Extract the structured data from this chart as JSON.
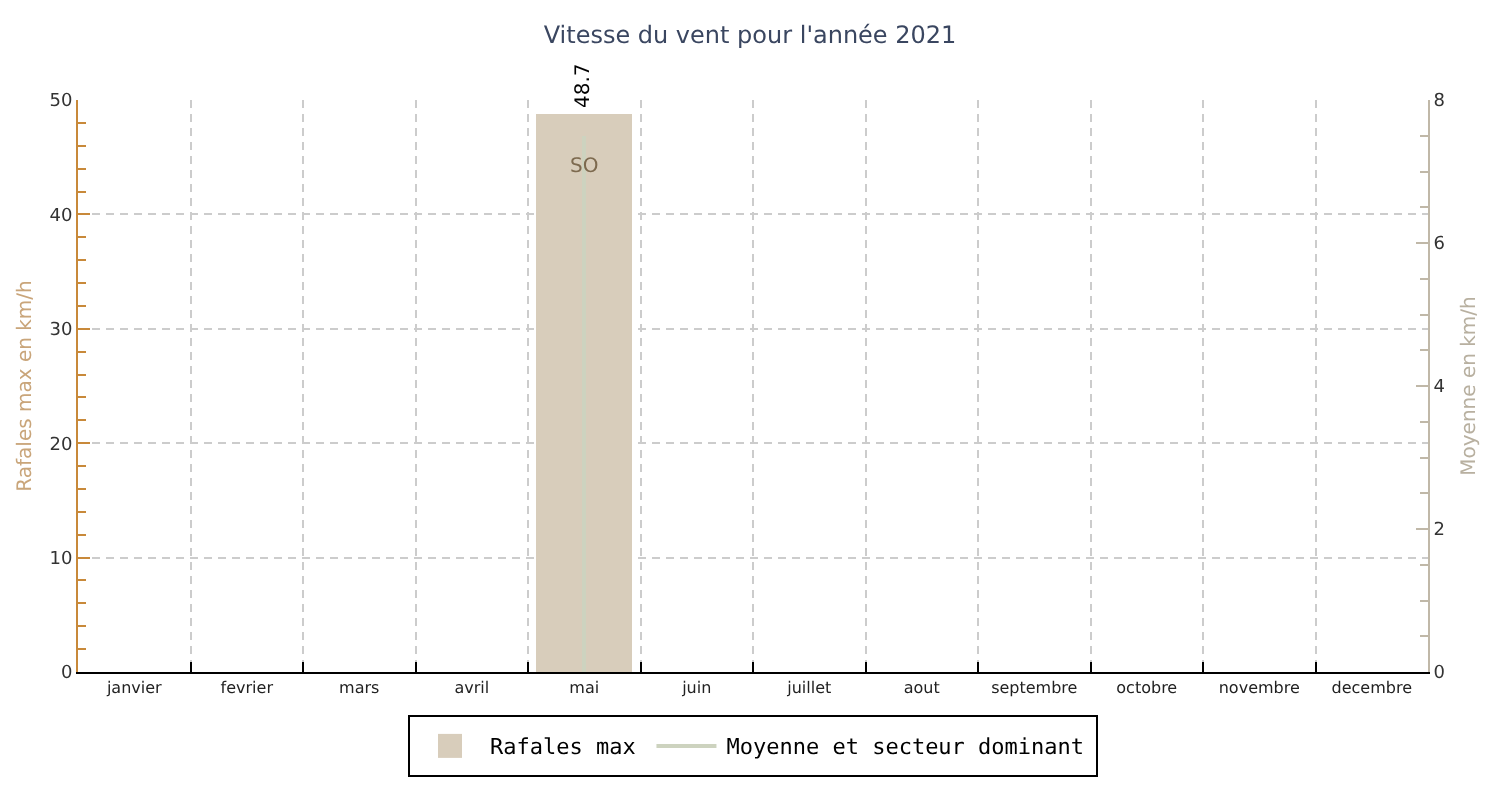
{
  "chart_data": {
    "type": "bar",
    "title": "Vitesse du vent pour l'année 2021",
    "ylabel": "Rafales max en km/h",
    "y2label": "Moyenne en km/h",
    "categories": [
      "janvier",
      "fevrier",
      "mars",
      "avril",
      "mai",
      "juin",
      "juillet",
      "aout",
      "septembre",
      "octobre",
      "novembre",
      "decembre"
    ],
    "series": [
      {
        "name": "Rafales max",
        "color": "#d8cdbb",
        "values": [
          null,
          null,
          null,
          null,
          48.7,
          null,
          null,
          null,
          null,
          null,
          null,
          null
        ],
        "value_labels": [
          null,
          null,
          null,
          null,
          "48.7",
          null,
          null,
          null,
          null,
          null,
          null,
          null
        ]
      },
      {
        "name": "Moyenne et secteur dominant",
        "type": "bar",
        "axis": "y2",
        "color": "#cdd3bf",
        "values": [
          null,
          null,
          null,
          null,
          7.5,
          null,
          null,
          null,
          null,
          null,
          null,
          null
        ],
        "value_labels": [
          null,
          null,
          null,
          null,
          "SO",
          null,
          null,
          null,
          null,
          null,
          null,
          null
        ]
      }
    ],
    "ylim": [
      0,
      50
    ],
    "yticks": [
      0,
      {
        "value": 2,
        "label": null
      },
      {
        "value": 4,
        "label": null
      },
      {
        "value": 6,
        "label": null
      },
      {
        "value": 8,
        "label": null
      },
      10,
      {
        "value": 12,
        "label": null
      },
      {
        "value": 14,
        "label": null
      },
      {
        "value": 16,
        "label": null
      },
      {
        "value": 18,
        "label": null
      },
      20,
      {
        "value": 22,
        "label": null
      },
      {
        "value": 24,
        "label": null
      },
      {
        "value": 26,
        "label": null
      },
      {
        "value": 28,
        "label": null
      },
      30,
      {
        "value": 32,
        "label": null
      },
      {
        "value": 34,
        "label": null
      },
      {
        "value": 36,
        "label": null
      },
      {
        "value": 38,
        "label": null
      },
      40,
      {
        "value": 42,
        "label": null
      },
      {
        "value": 44,
        "label": null
      },
      {
        "value": 46,
        "label": null
      },
      {
        "value": 48,
        "label": null
      },
      50
    ],
    "y2lim": [
      0,
      8
    ],
    "y2ticks": [
      0,
      {
        "value": 0.5,
        "label": null
      },
      {
        "value": 1,
        "label": null
      },
      {
        "value": 1.5,
        "label": null
      },
      2,
      {
        "value": 2.5,
        "label": null
      },
      {
        "value": 3,
        "label": null
      },
      {
        "value": 3.5,
        "label": null
      },
      4,
      {
        "value": 4.5,
        "label": null
      },
      {
        "value": 5,
        "label": null
      },
      {
        "value": 5.5,
        "label": null
      },
      6,
      {
        "value": 6.5,
        "label": null
      },
      {
        "value": 7,
        "label": null
      },
      {
        "value": 7.5,
        "label": null
      },
      8
    ],
    "grid": true,
    "legend": "bottom"
  }
}
